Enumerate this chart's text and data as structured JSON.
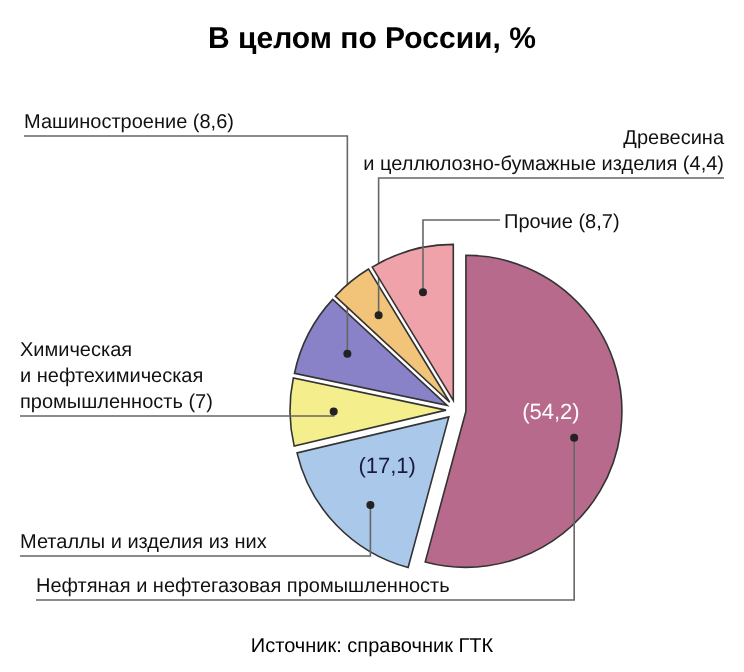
{
  "chart_data": {
    "type": "pie",
    "title": "В целом по России, %",
    "categories": [
      "Нефтяная и нефтегазовая промышленность",
      "Металлы и изделия из них",
      "Химическая и нефтехимическая промышленность",
      "Машиностроение",
      "Древесина и целлюлозно-бумажные изделия",
      "Прочие"
    ],
    "values": [
      54.2,
      17.1,
      7,
      8.6,
      4.4,
      8.7
    ],
    "value_labels": [
      "(54,2)",
      "(17,1)",
      "(7)",
      "(8,6)",
      "(4,4)",
      "(8,7)"
    ],
    "colors": [
      "#b86a8c",
      "#a9c8ea",
      "#f5ee8c",
      "#8a82c8",
      "#f2c47a",
      "#f0a2aa"
    ],
    "annotations": [
      "Источник: справочник ГТК"
    ]
  }
}
